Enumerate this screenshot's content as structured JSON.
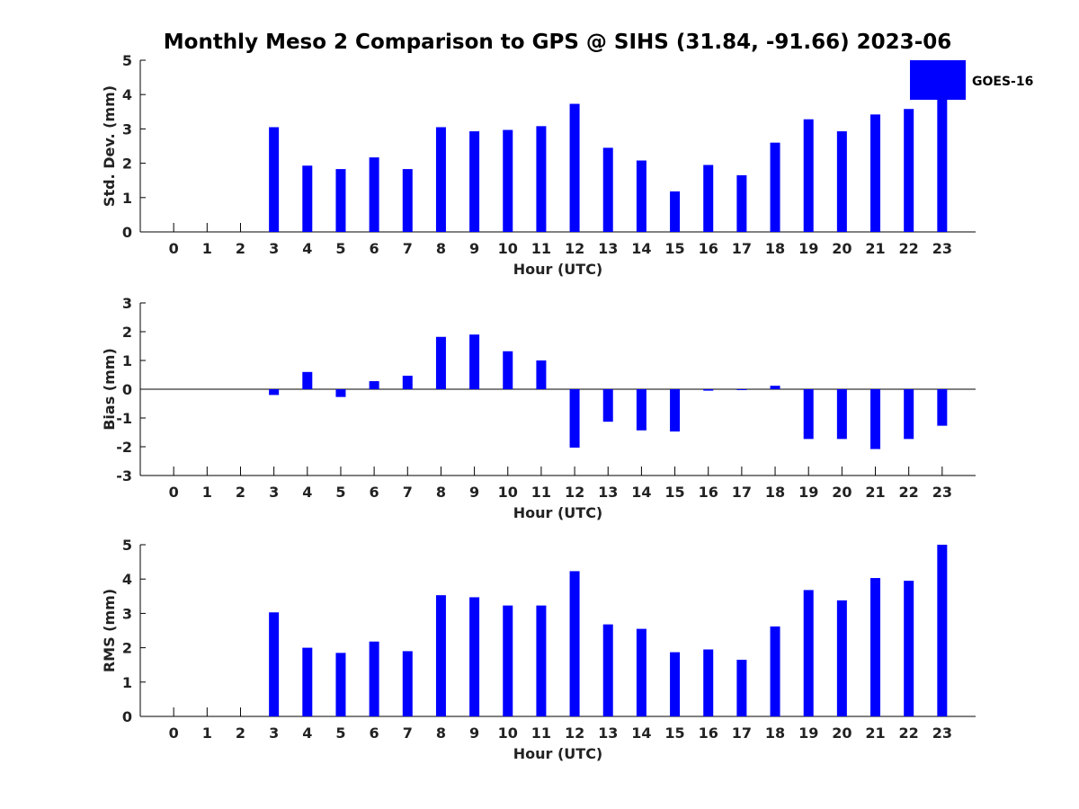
{
  "title": "Monthly Meso 2 Comparison to GPS @ SIHS (31.84, -91.66) 2023-06",
  "legend": {
    "label": "GOES-16",
    "color": "#0000ff",
    "placement": "top-right"
  },
  "chart_data": [
    {
      "type": "bar",
      "name": "std_dev",
      "ylabel": "Std. Dev. (mm)",
      "xlabel": "Hour (UTC)",
      "ylim": [
        0,
        5
      ],
      "yticks": [
        0,
        1,
        2,
        3,
        4,
        5
      ],
      "categories": [
        "0",
        "1",
        "2",
        "3",
        "4",
        "5",
        "6",
        "7",
        "8",
        "9",
        "10",
        "11",
        "12",
        "13",
        "14",
        "15",
        "16",
        "17",
        "18",
        "19",
        "20",
        "21",
        "22",
        "23"
      ],
      "series": [
        {
          "name": "GOES-16",
          "color": "#0000ff",
          "values": [
            null,
            null,
            null,
            3.05,
            1.93,
            1.83,
            2.17,
            1.83,
            3.05,
            2.93,
            2.97,
            3.08,
            3.73,
            2.45,
            2.08,
            1.18,
            1.95,
            1.65,
            2.6,
            3.28,
            2.93,
            3.42,
            3.58,
            5.0
          ]
        }
      ],
      "grid": false
    },
    {
      "type": "bar",
      "name": "bias",
      "ylabel": "Bias (mm)",
      "xlabel": "Hour (UTC)",
      "ylim": [
        -3,
        3
      ],
      "yticks": [
        -3,
        -2,
        -1,
        0,
        1,
        2,
        3
      ],
      "zero_line": true,
      "categories": [
        "0",
        "1",
        "2",
        "3",
        "4",
        "5",
        "6",
        "7",
        "8",
        "9",
        "10",
        "11",
        "12",
        "13",
        "14",
        "15",
        "16",
        "17",
        "18",
        "19",
        "20",
        "21",
        "22",
        "23"
      ],
      "series": [
        {
          "name": "GOES-16",
          "color": "#0000ff",
          "values": [
            null,
            null,
            null,
            -0.2,
            0.6,
            -0.27,
            0.28,
            0.47,
            1.82,
            1.9,
            1.32,
            1.0,
            -2.03,
            -1.13,
            -1.43,
            -1.47,
            -0.05,
            -0.03,
            0.12,
            -1.73,
            -1.73,
            -2.08,
            -1.73,
            -1.27
          ]
        }
      ],
      "grid": false
    },
    {
      "type": "bar",
      "name": "rms",
      "ylabel": "RMS (mm)",
      "xlabel": "Hour (UTC)",
      "ylim": [
        0,
        5
      ],
      "yticks": [
        0,
        1,
        2,
        3,
        4,
        5
      ],
      "categories": [
        "0",
        "1",
        "2",
        "3",
        "4",
        "5",
        "6",
        "7",
        "8",
        "9",
        "10",
        "11",
        "12",
        "13",
        "14",
        "15",
        "16",
        "17",
        "18",
        "19",
        "20",
        "21",
        "22",
        "23"
      ],
      "series": [
        {
          "name": "GOES-16",
          "color": "#0000ff",
          "values": [
            null,
            null,
            null,
            3.03,
            2.0,
            1.85,
            2.18,
            1.9,
            3.53,
            3.47,
            3.23,
            3.23,
            4.23,
            2.68,
            2.55,
            1.87,
            1.95,
            1.65,
            2.62,
            3.68,
            3.38,
            4.03,
            3.95,
            5.0
          ]
        }
      ],
      "grid": false
    }
  ]
}
